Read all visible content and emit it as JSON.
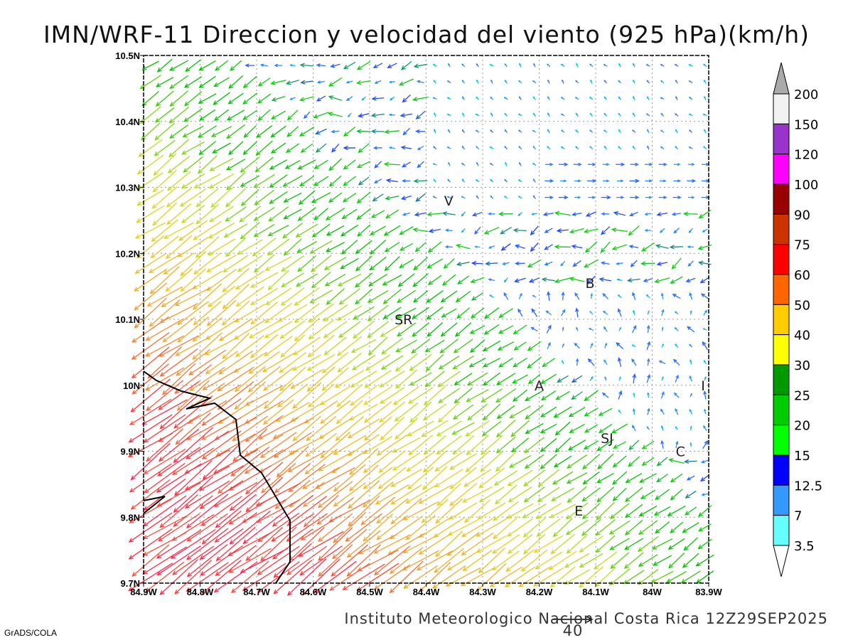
{
  "title": "IMN/WRF-11 Direccion y velocidad del viento (925 hPa)(km/h)",
  "map": {
    "lon_range": [
      -84.9,
      -83.9
    ],
    "lat_range": [
      9.7,
      10.5
    ],
    "lat_labels": [
      "9.7N",
      "9.8N",
      "9.9N",
      "10N",
      "10.1N",
      "10.2N",
      "10.3N",
      "10.4N",
      "10.5N"
    ],
    "lon_labels": [
      "84.9W",
      "84.8W",
      "84.7W",
      "84.6W",
      "84.5W",
      "84.4W",
      "84.3W",
      "84.2W",
      "84.1W",
      "84W",
      "83.9W"
    ],
    "places": [
      {
        "label": "V",
        "lon": -84.36,
        "lat": 10.28
      },
      {
        "label": "B",
        "lon": -84.11,
        "lat": 10.155
      },
      {
        "label": "SR",
        "lon": -84.44,
        "lat": 10.1
      },
      {
        "label": "A",
        "lon": -84.2,
        "lat": 10.0
      },
      {
        "label": "I",
        "lon": -83.91,
        "lat": 10.0
      },
      {
        "label": "SJ",
        "lon": -84.08,
        "lat": 9.92
      },
      {
        "label": "C",
        "lon": -83.95,
        "lat": 9.9
      },
      {
        "label": "E",
        "lon": -84.13,
        "lat": 9.81
      }
    ]
  },
  "colorbar": {
    "labels": [
      "200",
      "150",
      "120",
      "100",
      "90",
      "75",
      "60",
      "50",
      "40",
      "30",
      "25",
      "20",
      "15",
      "12.5",
      "7",
      "3.5"
    ],
    "colors": [
      "#f2f2f2",
      "#9933cc",
      "#ff00ff",
      "#990000",
      "#cc3300",
      "#ff0000",
      "#ff6600",
      "#ffcc00",
      "#ffff00",
      "#009900",
      "#00cc00",
      "#00ff00",
      "#0000ff",
      "#3399ff",
      "#66ffff"
    ],
    "over_color": "#aaaaaa",
    "under_color": "#ffffff"
  },
  "reference_vector": {
    "label": "40"
  },
  "footer": "Instituto Meteorologico Nacional Costa Rica 12Z29SEP2025",
  "software": "GrADS/COLA"
}
